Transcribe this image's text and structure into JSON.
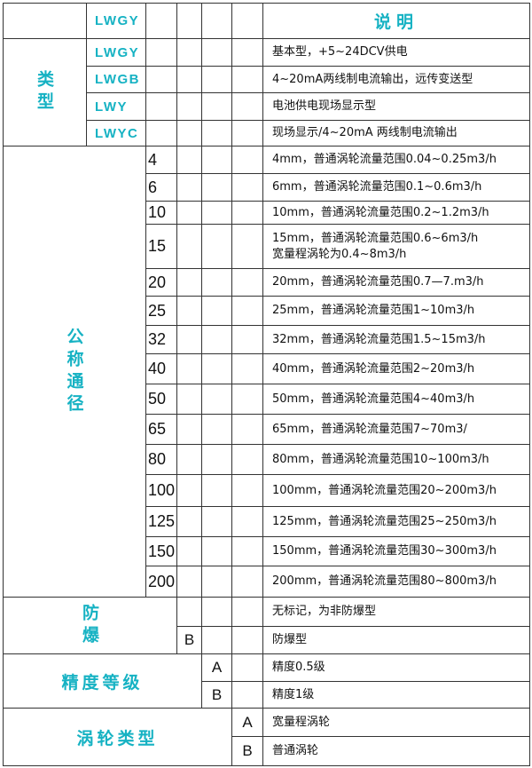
{
  "header": {
    "code": "LWGY",
    "description_title": "说明"
  },
  "type_section": {
    "label": "类型",
    "rows": [
      {
        "code": "LWGY",
        "description": "基本型，+5~24DCV供电"
      },
      {
        "code": "LWGB",
        "description": "4~20mA两线制电流输出，远传变送型"
      },
      {
        "code": "LWY",
        "description": "电池供电现场显示型"
      },
      {
        "code": "LWYC",
        "description": "现场显示/4~20mA 两线制电流输出"
      }
    ]
  },
  "diameter_section": {
    "label": "公称通径",
    "rows": [
      {
        "code": "4",
        "description": "4mm，普通涡轮流量范围0.04~0.25m3/h"
      },
      {
        "code": "6",
        "description": "6mm，普通涡轮流量范围0.1~0.6m3/h"
      },
      {
        "code": "10",
        "description": "10mm，普通涡轮流量范围0.2~1.2m3/h"
      },
      {
        "code": "15",
        "description": "15mm，普通涡轮流量范围0.6~6m3/h\n宽量程涡轮为0.4~8m3/h"
      },
      {
        "code": "20",
        "description": "20mm，普通涡轮流量范围0.7—7.m3/h"
      },
      {
        "code": "25",
        "description": "25mm，普通涡轮流量范围1~10m3/h"
      },
      {
        "code": "32",
        "description": "32mm，普通涡轮流量范围1.5~15m3/h"
      },
      {
        "code": "40",
        "description": "40mm，普通涡轮流量范围2~20m3/h"
      },
      {
        "code": "50",
        "description": "50mm，普通涡轮流量范围4~40m3/h"
      },
      {
        "code": "65",
        "description": "65mm，普通涡轮流量范围7~70m3/"
      },
      {
        "code": "80",
        "description": "80mm，普通涡轮流量范围10~100m3/h"
      },
      {
        "code": "100",
        "description": "100mm，普通涡轮流量范围20~200m3/h"
      },
      {
        "code": "125",
        "description": "125mm，普通涡轮流量范围25~250m3/h"
      },
      {
        "code": "150",
        "description": "150mm，普通涡轮流量范围30~300m3/h"
      },
      {
        "code": "200",
        "description": "200mm，普通涡轮流量范围80~800m3/h"
      }
    ]
  },
  "explosion_section": {
    "label": "防爆",
    "rows": [
      {
        "code": "",
        "description": "无标记，为非防爆型"
      },
      {
        "code": "B",
        "description": "防爆型"
      }
    ]
  },
  "accuracy_section": {
    "label": "精度等级",
    "rows": [
      {
        "code": "A",
        "description": "精度0.5级"
      },
      {
        "code": "B",
        "description": "精度1级"
      }
    ]
  },
  "turbine_section": {
    "label": "涡轮类型",
    "rows": [
      {
        "code": "A",
        "description": "宽量程涡轮"
      },
      {
        "code": "B",
        "description": "普通涡轮"
      }
    ]
  },
  "colors": {
    "accent": "#16b2c3",
    "grid": "#333333"
  }
}
